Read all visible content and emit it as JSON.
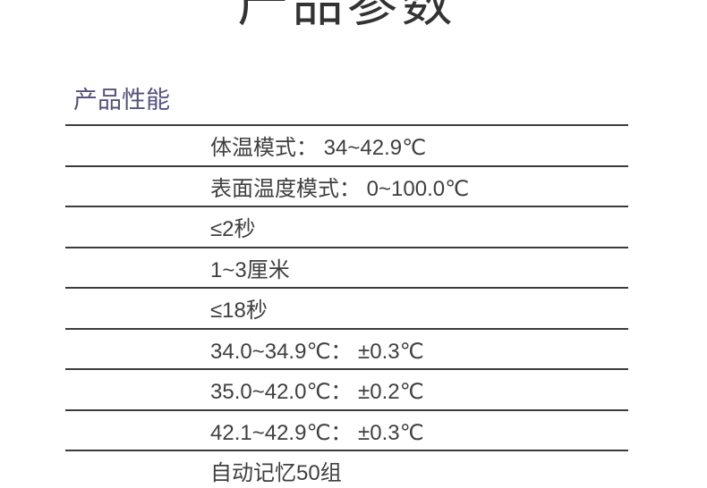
{
  "page": {
    "title": "产品参数"
  },
  "section": {
    "heading": "产品性能"
  },
  "spec_table": {
    "rows": [
      "体温模式： 34~42.9℃",
      "表面温度模式： 0~100.0℃",
      "≤2秒",
      "1~3厘米",
      "≤18秒",
      "34.0~34.9℃： ±0.3℃",
      "35.0~42.0℃： ±0.2℃",
      "42.1~42.9℃： ±0.3℃",
      "自动记忆50组"
    ]
  },
  "colors": {
    "background": "#FFFFFF",
    "title_text": "#333333",
    "heading_accent": "#56527E",
    "body_text": "#3F3F3F",
    "rule_line": "#3C3C3C"
  }
}
